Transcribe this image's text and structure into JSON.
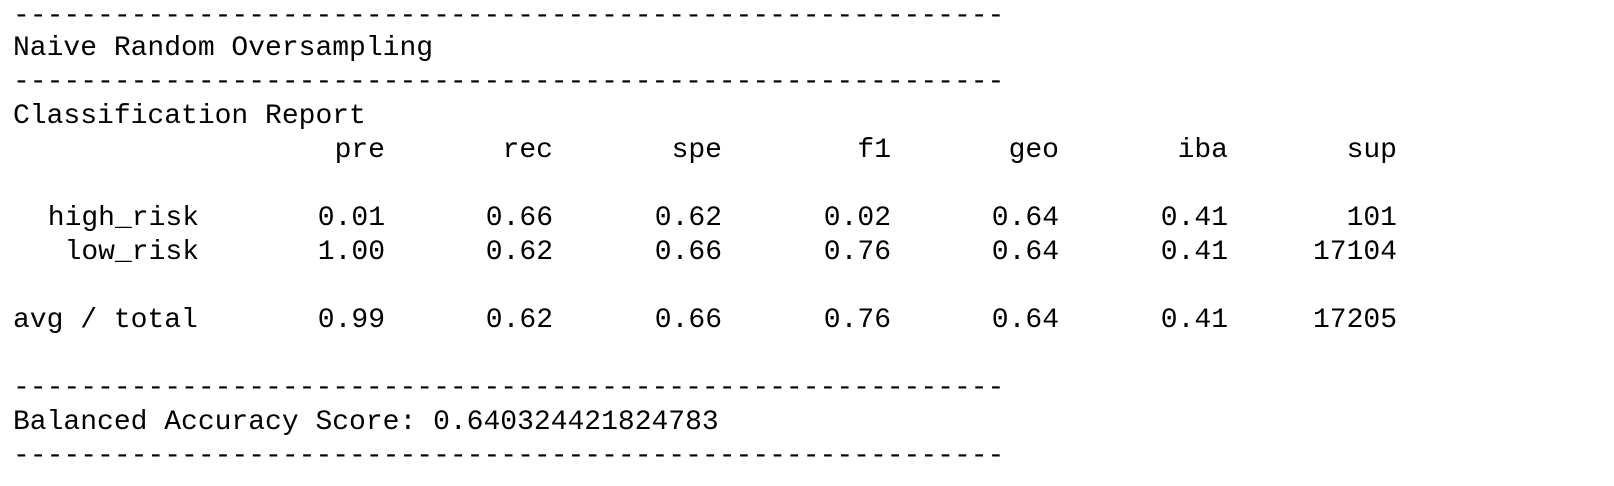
{
  "rule": "-----------------------------------------------------------",
  "title": "Naive Random Oversampling",
  "report_title": "Classification Report",
  "columns": [
    "pre",
    "rec",
    "spe",
    "f1",
    "geo",
    "iba",
    "sup"
  ],
  "rows": [
    {
      "label": "high_risk",
      "values": [
        "0.01",
        "0.66",
        "0.62",
        "0.02",
        "0.64",
        "0.41",
        "101"
      ]
    },
    {
      "label": "low_risk",
      "values": [
        "1.00",
        "0.62",
        "0.66",
        "0.76",
        "0.64",
        "0.41",
        "17104"
      ]
    }
  ],
  "total": {
    "label": "avg / total",
    "values": [
      "0.99",
      "0.62",
      "0.66",
      "0.76",
      "0.64",
      "0.41",
      "17205"
    ]
  },
  "balanced_accuracy": "Balanced Accuracy Score: 0.640324421824783"
}
